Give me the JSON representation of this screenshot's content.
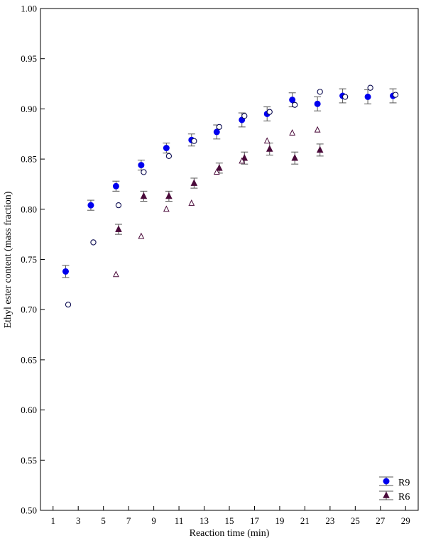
{
  "chart_data": {
    "type": "scatter",
    "title": "",
    "xlabel": "Reaction time (min)",
    "ylabel": "Ethyl ester content (mass fraction)",
    "xlim": [
      0,
      30
    ],
    "ylim": [
      0.5,
      1.0
    ],
    "x_ticks": [
      "1",
      "3",
      "5",
      "7",
      "9",
      "11",
      "13",
      "15",
      "17",
      "19",
      "21",
      "23",
      "25",
      "27",
      "29"
    ],
    "y_ticks": [
      "0.50",
      "0.55",
      "0.60",
      "0.65",
      "0.70",
      "0.75",
      "0.80",
      "0.85",
      "0.90",
      "0.95",
      "1.00"
    ],
    "grid": false,
    "legend_position": "bottom-right",
    "series": [
      {
        "name": "R9",
        "kind": "experimental",
        "marker": "filled-circle",
        "color": "#0000ee",
        "error_color": "#555555",
        "points": [
          {
            "x": 2,
            "y": 0.738,
            "err": 0.006
          },
          {
            "x": 4,
            "y": 0.804,
            "err": 0.005
          },
          {
            "x": 6,
            "y": 0.823,
            "err": 0.005
          },
          {
            "x": 8,
            "y": 0.844,
            "err": 0.005
          },
          {
            "x": 10,
            "y": 0.861,
            "err": 0.005
          },
          {
            "x": 12,
            "y": 0.869,
            "err": 0.006
          },
          {
            "x": 14,
            "y": 0.877,
            "err": 0.007
          },
          {
            "x": 16,
            "y": 0.889,
            "err": 0.007
          },
          {
            "x": 18,
            "y": 0.895,
            "err": 0.007
          },
          {
            "x": 20,
            "y": 0.909,
            "err": 0.007
          },
          {
            "x": 22,
            "y": 0.905,
            "err": 0.007
          },
          {
            "x": 24,
            "y": 0.913,
            "err": 0.007
          },
          {
            "x": 26,
            "y": 0.912,
            "err": 0.007
          },
          {
            "x": 28,
            "y": 0.913,
            "err": 0.007
          }
        ]
      },
      {
        "name": "",
        "kind": "model",
        "marker": "open-circle",
        "color": "#0a0a50",
        "points": [
          {
            "x": 2.2,
            "y": 0.705
          },
          {
            "x": 4.2,
            "y": 0.767
          },
          {
            "x": 6.2,
            "y": 0.804
          },
          {
            "x": 8.2,
            "y": 0.837
          },
          {
            "x": 10.2,
            "y": 0.853
          },
          {
            "x": 12.2,
            "y": 0.868
          },
          {
            "x": 14.2,
            "y": 0.882
          },
          {
            "x": 16.2,
            "y": 0.893
          },
          {
            "x": 18.2,
            "y": 0.897
          },
          {
            "x": 20.2,
            "y": 0.904
          },
          {
            "x": 22.2,
            "y": 0.917
          },
          {
            "x": 24.2,
            "y": 0.912
          },
          {
            "x": 26.2,
            "y": 0.921
          },
          {
            "x": 28.2,
            "y": 0.914
          }
        ]
      },
      {
        "name": "R6",
        "kind": "experimental",
        "marker": "filled-triangle",
        "color": "#4a0a3a",
        "error_color": "#555555",
        "points": [
          {
            "x": 6.2,
            "y": 0.78,
            "err": 0.005
          },
          {
            "x": 8.2,
            "y": 0.813,
            "err": 0.005
          },
          {
            "x": 10.2,
            "y": 0.813,
            "err": 0.005
          },
          {
            "x": 12.2,
            "y": 0.826,
            "err": 0.005
          },
          {
            "x": 14.2,
            "y": 0.841,
            "err": 0.005
          },
          {
            "x": 16.2,
            "y": 0.851,
            "err": 0.006
          },
          {
            "x": 18.2,
            "y": 0.86,
            "err": 0.006
          },
          {
            "x": 20.2,
            "y": 0.851,
            "err": 0.006
          },
          {
            "x": 22.2,
            "y": 0.859,
            "err": 0.006
          }
        ]
      },
      {
        "name": "",
        "kind": "model",
        "marker": "open-triangle",
        "color": "#4a0a3a",
        "points": [
          {
            "x": 6,
            "y": 0.735
          },
          {
            "x": 8,
            "y": 0.773
          },
          {
            "x": 10,
            "y": 0.8
          },
          {
            "x": 12,
            "y": 0.806
          },
          {
            "x": 14,
            "y": 0.837
          },
          {
            "x": 16,
            "y": 0.848
          },
          {
            "x": 18,
            "y": 0.868
          },
          {
            "x": 20,
            "y": 0.876
          },
          {
            "x": 22,
            "y": 0.879
          }
        ]
      }
    ],
    "legend": [
      {
        "label": "R9",
        "marker": "filled-circle",
        "color": "#0000ee"
      },
      {
        "label": "R6",
        "marker": "filled-triangle",
        "color": "#4a0a3a"
      }
    ]
  }
}
